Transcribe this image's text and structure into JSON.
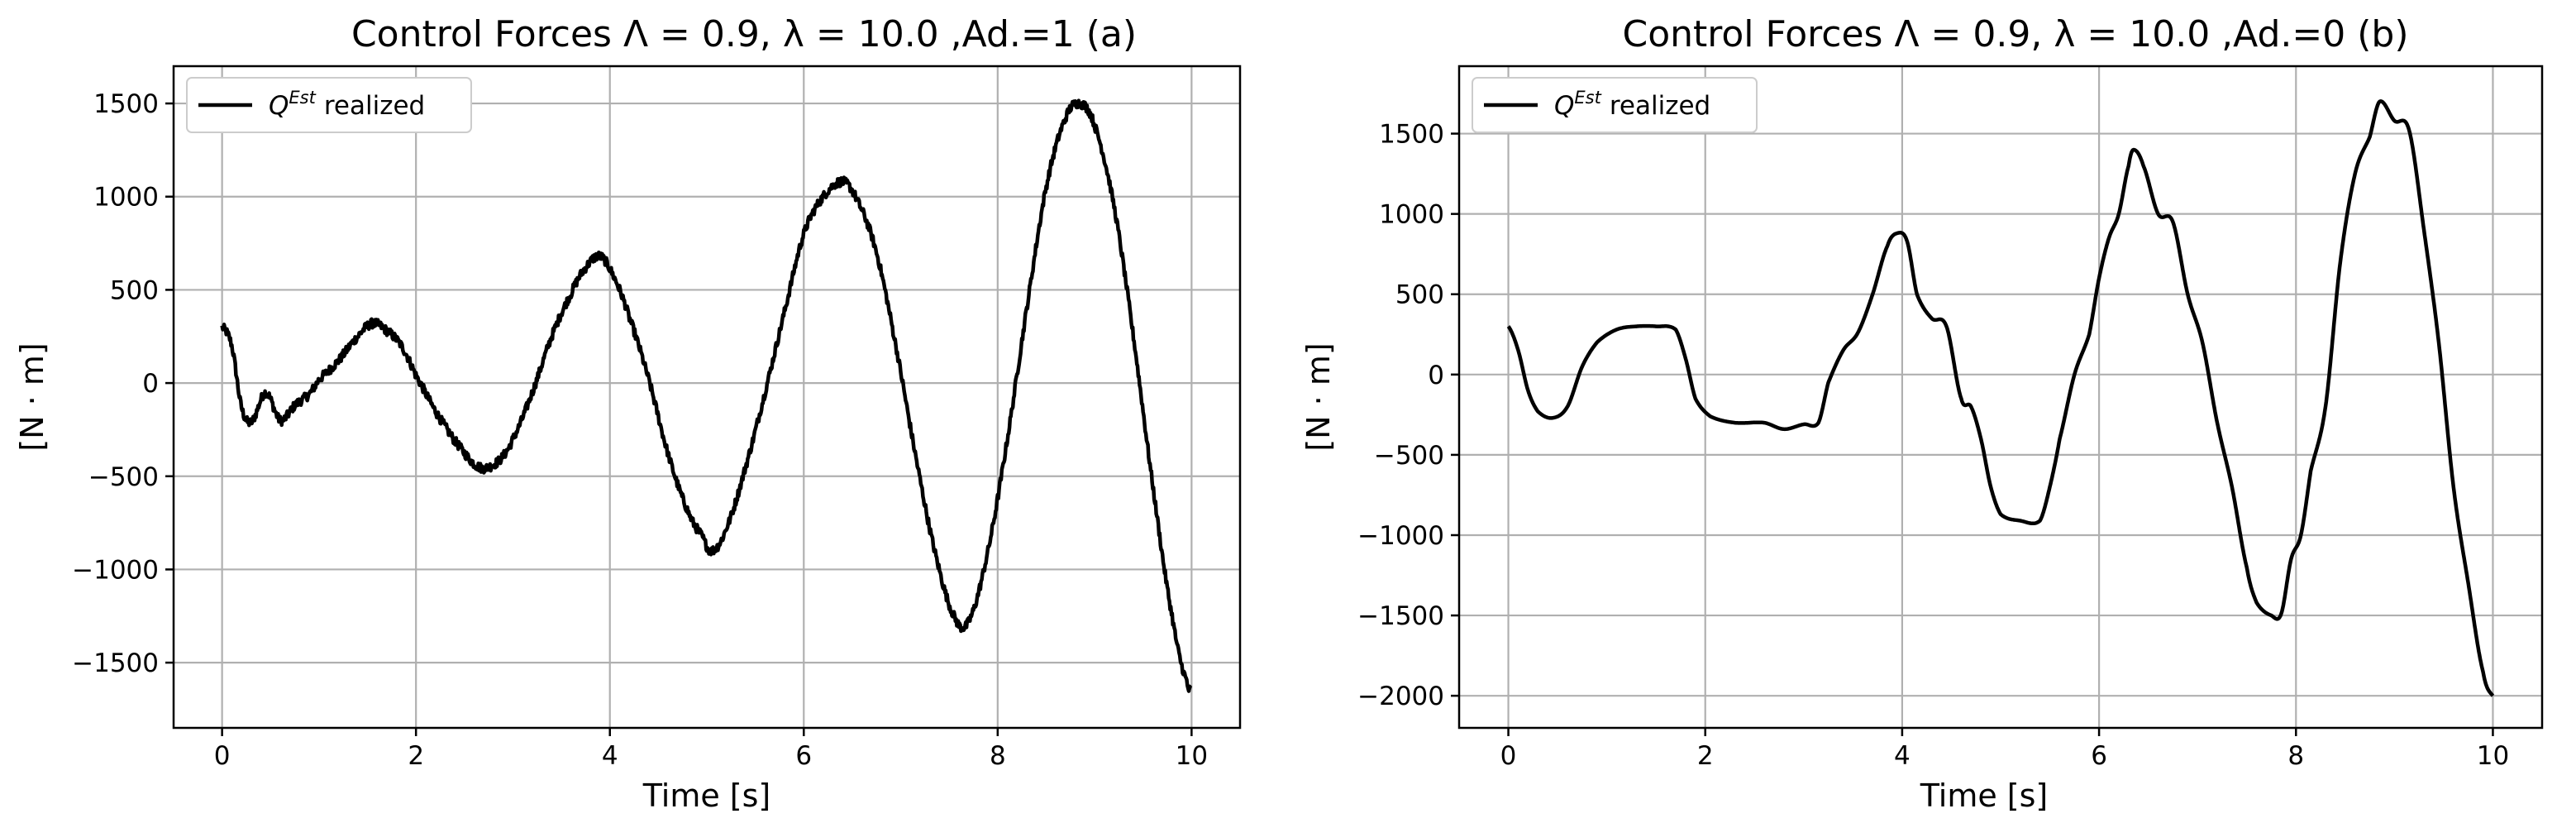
{
  "chart_data": [
    {
      "type": "line",
      "title": "Control Forces Λ = 0.9, λ = 10.0 ,Ad.=1 (a)",
      "xlabel": "Time [s]",
      "ylabel": "[N · m]",
      "xlim": [
        -0.5,
        10.5
      ],
      "ylim": [
        -1850,
        1700
      ],
      "xticks": [
        0,
        2,
        4,
        6,
        8,
        10
      ],
      "yticks": [
        -1500,
        -1000,
        -500,
        0,
        500,
        1000,
        1500
      ],
      "xtick_labels": [
        "0",
        "2",
        "4",
        "6",
        "8",
        "10"
      ],
      "ytick_labels": [
        "−1500",
        "−1000",
        "−500",
        "0",
        "500",
        "1000",
        "1500"
      ],
      "grid": true,
      "legend": "upper left",
      "line_color": "#000000",
      "noise_amplitude": 25,
      "series": [
        {
          "name": "Q^Est realized",
          "x": [
            0,
            0.1,
            0.2,
            0.3,
            0.45,
            0.6,
            0.75,
            0.9,
            1.0,
            1.2,
            1.4,
            1.55,
            1.7,
            1.85,
            2.0,
            2.2,
            2.4,
            2.65,
            2.85,
            3.0,
            3.2,
            3.4,
            3.6,
            3.75,
            3.9,
            4.05,
            4.2,
            4.4,
            4.6,
            4.8,
            4.95,
            5.05,
            5.2,
            5.4,
            5.6,
            5.8,
            6.0,
            6.2,
            6.4,
            6.55,
            6.75,
            6.95,
            7.15,
            7.35,
            7.55,
            7.7,
            7.9,
            8.1,
            8.3,
            8.5,
            8.7,
            8.85,
            9.0,
            9.2,
            9.4,
            9.6,
            9.8,
            9.95,
            10.0
          ],
          "y": [
            300,
            200,
            -130,
            -210,
            -50,
            -200,
            -120,
            -60,
            20,
            120,
            250,
            320,
            280,
            200,
            40,
            -150,
            -310,
            -450,
            -420,
            -300,
            -50,
            250,
            480,
            620,
            680,
            560,
            350,
            20,
            -380,
            -680,
            -820,
            -900,
            -780,
            -450,
            -50,
            380,
            800,
            1000,
            1080,
            980,
            700,
            200,
            -380,
            -900,
            -1250,
            -1280,
            -900,
            -300,
            400,
            1050,
            1420,
            1500,
            1380,
            950,
            250,
            -550,
            -1250,
            -1600,
            -1650
          ]
        }
      ]
    },
    {
      "type": "line",
      "title": "Control Forces Λ = 0.9, λ = 10.0 ,Ad.=0 (b)",
      "xlabel": "Time [s]",
      "ylabel": "[N · m]",
      "xlim": [
        -0.5,
        10.5
      ],
      "ylim": [
        -2200,
        1920
      ],
      "xticks": [
        0,
        2,
        4,
        6,
        8,
        10
      ],
      "yticks": [
        -2000,
        -1500,
        -1000,
        -500,
        0,
        500,
        1000,
        1500
      ],
      "xtick_labels": [
        "0",
        "2",
        "4",
        "6",
        "8",
        "10"
      ],
      "ytick_labels": [
        "−2000",
        "−1500",
        "−1000",
        "−500",
        "0",
        "500",
        "1000",
        "1500"
      ],
      "grid": true,
      "legend": "upper left",
      "line_color": "#000000",
      "noise_amplitude": 0,
      "series": [
        {
          "name": "Q^Est realized",
          "x": [
            0,
            0.1,
            0.2,
            0.3,
            0.45,
            0.6,
            0.75,
            0.9,
            1.1,
            1.3,
            1.5,
            1.7,
            1.8,
            1.9,
            2.05,
            2.3,
            2.6,
            2.8,
            3.0,
            3.15,
            3.25,
            3.4,
            3.55,
            3.7,
            3.85,
            3.95,
            4.05,
            4.15,
            4.3,
            4.45,
            4.6,
            4.7,
            4.8,
            4.9,
            5.0,
            5.2,
            5.4,
            5.5,
            5.6,
            5.75,
            5.9,
            6.0,
            6.1,
            6.2,
            6.3,
            6.35,
            6.45,
            6.6,
            6.75,
            6.9,
            7.05,
            7.2,
            7.35,
            7.5,
            7.6,
            7.75,
            7.85,
            7.95,
            8.05,
            8.15,
            8.3,
            8.45,
            8.6,
            8.75,
            8.85,
            9.0,
            9.15,
            9.3,
            9.45,
            9.6,
            9.75,
            9.9,
            10.0
          ],
          "y": [
            300,
            150,
            -100,
            -230,
            -270,
            -200,
            50,
            200,
            280,
            300,
            300,
            280,
            100,
            -150,
            -260,
            -300,
            -300,
            -340,
            -310,
            -300,
            -50,
            150,
            260,
            500,
            800,
            880,
            830,
            500,
            350,
            300,
            -150,
            -200,
            -400,
            -700,
            -870,
            -910,
            -910,
            -700,
            -400,
            0,
            250,
            600,
            850,
            1000,
            1300,
            1400,
            1300,
            1000,
            950,
            500,
            200,
            -300,
            -700,
            -1200,
            -1420,
            -1500,
            -1490,
            -1150,
            -1000,
            -600,
            -200,
            700,
            1250,
            1480,
            1700,
            1580,
            1520,
            900,
            200,
            -700,
            -1300,
            -1850,
            -2000
          ]
        }
      ]
    }
  ],
  "legend_label_base": "Q",
  "legend_label_sup": "Est",
  "legend_label_suffix": "realized"
}
